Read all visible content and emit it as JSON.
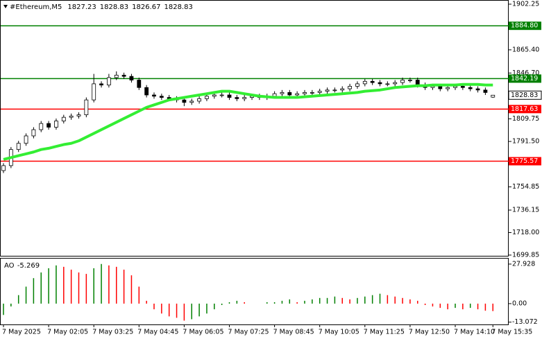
{
  "chart_data": {
    "type": "candlestick",
    "title": "#Ethereum,M5",
    "categories": [
      "7 May 2025",
      null,
      null,
      null,
      null,
      null,
      "7 May 02:05",
      null,
      null,
      null,
      null,
      null,
      "7 May 03:25",
      null,
      null,
      null,
      null,
      null,
      "7 May 04:45",
      null,
      null,
      null,
      null,
      null,
      "7 May 06:05",
      null,
      null,
      null,
      null,
      null,
      "7 May 07:25",
      null,
      null,
      null,
      null,
      null,
      "7 May 08:45",
      null,
      null,
      null,
      null,
      null,
      "7 May 10:05",
      null,
      null,
      null,
      null,
      null,
      "7 May 11:25",
      null,
      null,
      null,
      null,
      null,
      "7 May 12:50",
      null,
      null,
      null,
      null,
      null,
      "7 May 14:10",
      null,
      null,
      null,
      null,
      "7 May 15:35"
    ],
    "open": [
      1768,
      1772,
      1785,
      1790,
      1796,
      1801,
      1806,
      1803,
      1808,
      1811,
      1812,
      1813,
      1825,
      1838,
      1837,
      1843,
      1845,
      1844,
      1841,
      1835,
      1829,
      1828,
      1827,
      1826,
      1825,
      1823,
      1824,
      1826,
      1828,
      1829,
      1829,
      1827,
      1826,
      1827,
      1828,
      1827,
      1828,
      1830,
      1831,
      1829,
      1830,
      1831,
      1831,
      1832,
      1833,
      1833,
      1834,
      1836,
      1838,
      1840,
      1839,
      1838,
      1838,
      1839,
      1841,
      1841,
      1837,
      1835,
      1836,
      1834,
      1835,
      1836,
      1835,
      1834,
      1833,
      1827.23
    ],
    "high": [
      1774,
      1787,
      1792,
      1798,
      1803,
      1808,
      1808,
      1810,
      1813,
      1814,
      1815,
      1827,
      1846,
      1840,
      1846,
      1848,
      1847,
      1846,
      1843,
      1837,
      1831,
      1830,
      1829,
      1828,
      1827,
      1826,
      1828,
      1830,
      1831,
      1831,
      1831,
      1829,
      1829,
      1830,
      1830,
      1830,
      1832,
      1833,
      1833,
      1832,
      1833,
      1833,
      1834,
      1835,
      1835,
      1836,
      1838,
      1840,
      1842,
      1842,
      1841,
      1840,
      1841,
      1843,
      1843,
      1843,
      1839,
      1838,
      1838,
      1837,
      1838,
      1838,
      1837,
      1836,
      1835,
      1828.83
    ],
    "low": [
      1766,
      1770,
      1783,
      1788,
      1794,
      1799,
      1801,
      1801,
      1806,
      1809,
      1810,
      1811,
      1823,
      1835,
      1835,
      1841,
      1842,
      1839,
      1833,
      1827,
      1826,
      1825,
      1824,
      1823,
      1820,
      1821,
      1822,
      1824,
      1826,
      1827,
      1825,
      1824,
      1824,
      1825,
      1825,
      1825,
      1826,
      1828,
      1827,
      1827,
      1828,
      1829,
      1829,
      1830,
      1831,
      1831,
      1832,
      1834,
      1836,
      1837,
      1836,
      1836,
      1836,
      1837,
      1839,
      1835,
      1833,
      1833,
      1832,
      1832,
      1833,
      1833,
      1832,
      1831,
      1829,
      1826.67
    ],
    "close": [
      1772,
      1785,
      1790,
      1796,
      1801,
      1806,
      1803,
      1808,
      1811,
      1812,
      1813,
      1825,
      1838,
      1837,
      1843,
      1845,
      1844,
      1841,
      1835,
      1829,
      1828,
      1827,
      1826,
      1825,
      1823,
      1824,
      1826,
      1828,
      1829,
      1829,
      1827,
      1826,
      1827,
      1828,
      1827,
      1828,
      1830,
      1831,
      1829,
      1830,
      1831,
      1831,
      1832,
      1833,
      1833,
      1834,
      1836,
      1838,
      1840,
      1839,
      1838,
      1838,
      1839,
      1841,
      1841,
      1837,
      1835,
      1836,
      1834,
      1835,
      1836,
      1835,
      1834,
      1833,
      1831,
      1828.83
    ],
    "ylim": [
      1698.7,
      1905.6
    ],
    "yticks": [
      1902.25,
      {
        "value": 1865.4,
        "label": "1865.40"
      },
      {
        "value": 1846.7,
        "label": "1846.70"
      },
      1809.75,
      {
        "value": 1791.5,
        "label": "1791.50"
      },
      1754.85,
      1736.15,
      {
        "value": 1718,
        "label": "1718.00"
      },
      1699.85
    ],
    "levels": [
      {
        "value": 1884.8,
        "label": "1884.80",
        "color": "#008000"
      },
      {
        "value": 1842.19,
        "color": "#008000"
      },
      {
        "value": 1817.63,
        "color": "#ff0000"
      },
      {
        "value": 1775.57,
        "color": "#ff0000"
      }
    ],
    "ma": {
      "color": "#33ee33",
      "values": [
        1777,
        1778.5,
        1780,
        1781.5,
        1783,
        1785,
        1786,
        1787.5,
        1789,
        1790,
        1792,
        1795,
        1798,
        1801,
        1804,
        1807,
        1810,
        1813,
        1816,
        1819,
        1821,
        1823,
        1825,
        1826,
        1827,
        1828,
        1829,
        1830,
        1831,
        1832,
        1832,
        1831,
        1830,
        1829,
        1828,
        1827.5,
        1827,
        1827,
        1827,
        1827,
        1827.5,
        1828,
        1828.5,
        1829,
        1829.5,
        1830,
        1830.5,
        1831,
        1832,
        1832.5,
        1833,
        1834,
        1835,
        1835.5,
        1836,
        1836.5,
        1836.5,
        1837,
        1837,
        1837,
        1837,
        1837.5,
        1837.5,
        1837.5,
        1837,
        1837
      ]
    },
    "ao": {
      "name": "AO",
      "up_color": "#008000",
      "down_color": "#ff0000",
      "values": [
        -8,
        -2,
        6,
        12,
        18,
        22,
        25,
        27,
        26,
        24,
        22,
        21,
        25,
        28,
        27,
        26,
        24,
        20,
        12,
        2,
        -4,
        -7,
        -9,
        -10,
        -12,
        -11,
        -9,
        -7,
        -4,
        -1,
        1,
        2,
        1,
        0,
        0,
        1,
        1,
        2,
        3,
        1,
        2,
        3,
        4,
        4,
        5,
        4,
        3,
        4,
        5,
        6,
        7,
        6,
        5,
        4,
        3,
        2,
        -1,
        -2,
        -3,
        -4,
        -3,
        -4,
        -3,
        -4,
        -5,
        -5.269
      ],
      "ylim": [
        -14.7,
        32.3
      ],
      "yticks": [
        27.928,
        {
          "value": 0,
          "label": "0.00"
        },
        -13.072
      ]
    }
  }
}
